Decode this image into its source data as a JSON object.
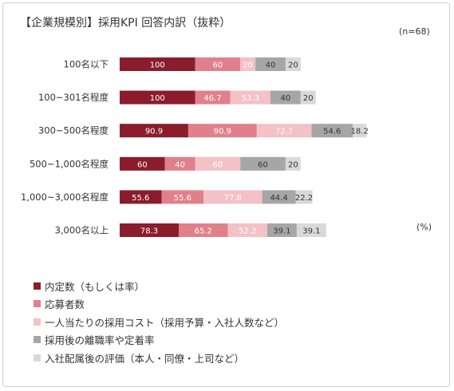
{
  "chart_data": {
    "type": "bar",
    "stacked": true,
    "orientation": "horizontal",
    "title": "【企業規模別】採用KPI 回答内訳（抜粋）",
    "note": "(n=68)",
    "unit": "(%)",
    "categories": [
      "100名以下",
      "100~301名程度",
      "300~500名程度",
      "500~1,000名程度",
      "1,000~3,000名程度",
      "3,000名以上"
    ],
    "series": [
      {
        "name": "内定数（もしくは率）",
        "color": "#8b1c2c",
        "values": [
          100,
          100,
          90.9,
          60,
          55.6,
          78.3
        ]
      },
      {
        "name": "応募者数",
        "color": "#e0808b",
        "values": [
          60,
          46.7,
          90.9,
          40,
          55.6,
          65.2
        ]
      },
      {
        "name": "一人当たりの採用コスト（採用予算・入社人数など）",
        "color": "#f3c1c6",
        "values": [
          20,
          53.3,
          72.7,
          60,
          77.8,
          52.2
        ]
      },
      {
        "name": "採用後の離職率や定着率",
        "color": "#a6a6a6",
        "values": [
          40,
          40,
          54.6,
          60,
          44.4,
          39.1
        ]
      },
      {
        "name": "入社配属後の評価（本人・同僚・上司など）",
        "color": "#d9d9d9",
        "values": [
          20,
          20,
          18.2,
          20,
          22.2,
          39.1
        ]
      }
    ],
    "data_labels": [
      [
        "100",
        "100",
        "90.9",
        "60",
        "55.6",
        "78.3"
      ],
      [
        "60",
        "46.7",
        "90.9",
        "40",
        "55.6",
        "65.2"
      ],
      [
        "20",
        "53.3",
        "72.7",
        "60",
        "77.8",
        "52.2"
      ],
      [
        "40",
        "40",
        "54.6",
        "60",
        "44.4",
        "39.1"
      ],
      [
        "20",
        "20",
        "18.2",
        "20",
        "22.2",
        "39.1"
      ]
    ],
    "label_colors": [
      "#ffffff",
      "#ffffff",
      "#ffffff",
      "#333333",
      "#333333"
    ],
    "grid": false,
    "legend_position": "bottom-left"
  }
}
